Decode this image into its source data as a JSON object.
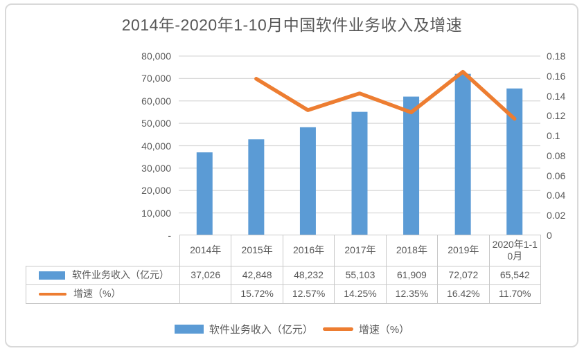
{
  "chart_data": {
    "type": "bar+line",
    "title": "2014年-2020年1-10月中国软件业务收入及增速",
    "categories": [
      "2014年",
      "2015年",
      "2016年",
      "2017年",
      "2018年",
      "2019年",
      "2020年1-10月"
    ],
    "series": [
      {
        "name": "软件业务收入（亿元）",
        "type": "bar",
        "axis": "left",
        "color": "#5b9bd5",
        "values": [
          37026,
          42848,
          48232,
          55103,
          61909,
          72072,
          65542
        ],
        "labels": [
          "37,026",
          "42,848",
          "48,232",
          "55,103",
          "61,909",
          "72,072",
          "65,542"
        ]
      },
      {
        "name": "增速（%）",
        "type": "line",
        "axis": "right",
        "color": "#ed7d31",
        "values": [
          null,
          0.1572,
          0.1257,
          0.1425,
          0.1235,
          0.1642,
          0.117
        ],
        "labels": [
          "",
          "15.72%",
          "12.57%",
          "14.25%",
          "12.35%",
          "16.42%",
          "11.70%"
        ]
      }
    ],
    "axes": {
      "left": {
        "min": 0,
        "max": 80000,
        "ticks": [
          "-",
          "10,000",
          "20,000",
          "30,000",
          "40,000",
          "50,000",
          "60,000",
          "70,000",
          "80,000"
        ]
      },
      "right": {
        "min": 0,
        "max": 0.18,
        "ticks": [
          "0",
          "0.02",
          "0.04",
          "0.06",
          "0.08",
          "0.1",
          "0.12",
          "0.14",
          "0.16",
          "0.18"
        ]
      }
    },
    "grid": true,
    "legend_position": "bottom",
    "colors": {
      "gridline": "#d9d9d9",
      "text": "#595959",
      "table_border": "#c8c8c8",
      "frame_border": "#d9d9d9"
    }
  }
}
